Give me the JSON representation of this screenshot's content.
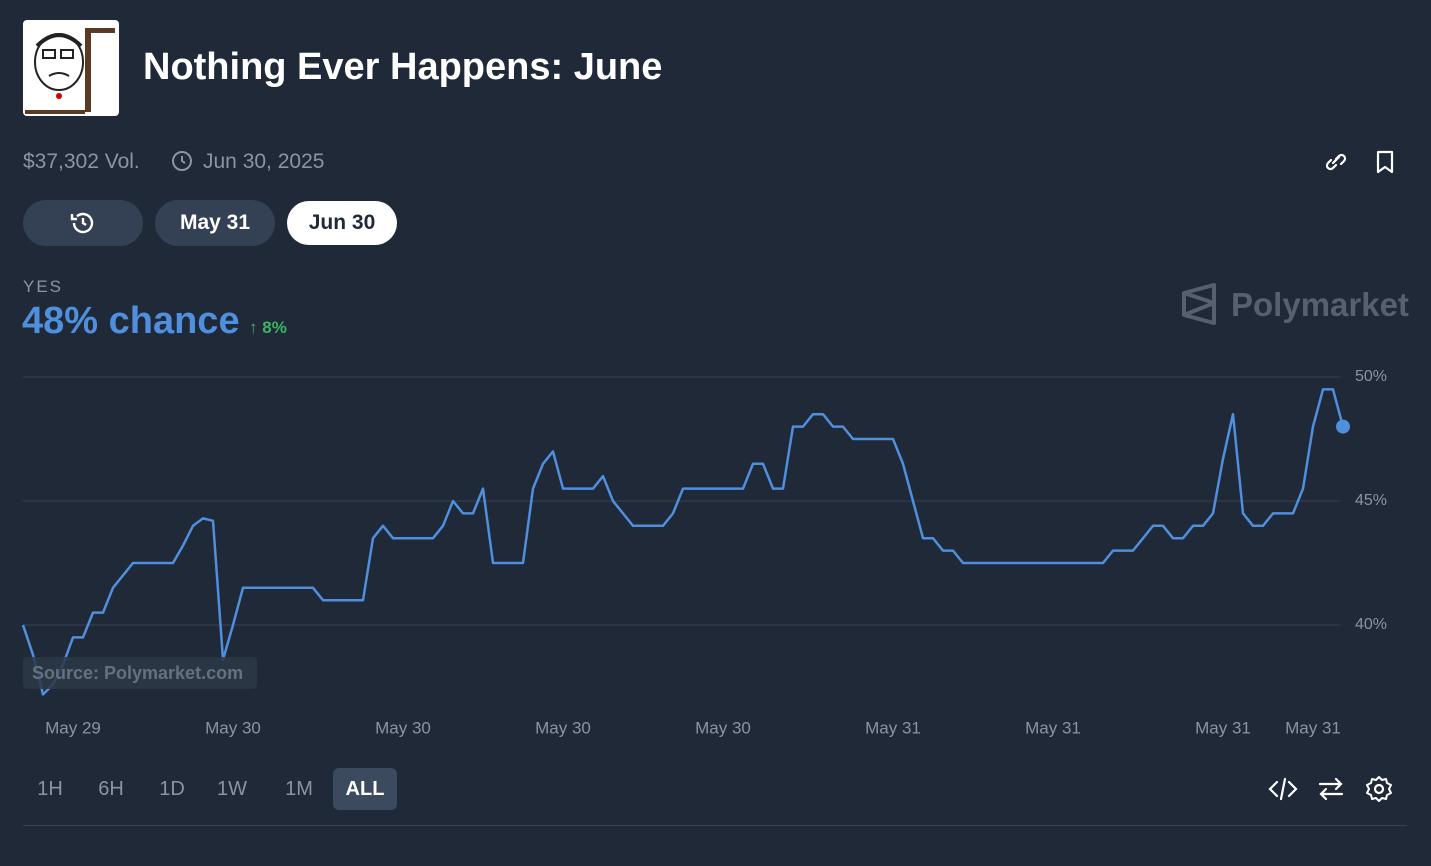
{
  "header": {
    "title": "Nothing Ever Happens: June",
    "volume": "$37,302 Vol.",
    "end_date": "Jun 30, 2025"
  },
  "date_tabs": [
    "May 31",
    "Jun 30"
  ],
  "outcome": {
    "label": "YES",
    "chance": "48% chance",
    "change": "8%"
  },
  "brand": "Polymarket",
  "source": "Source: Polymarket.com",
  "ranges": [
    "1H",
    "6H",
    "1D",
    "1W",
    "1M",
    "ALL"
  ],
  "chart_data": {
    "type": "line",
    "color": "#4f8fdd",
    "grid": true,
    "ylim": [
      37,
      50
    ],
    "yticks": [
      {
        "value": 40,
        "label": "40%"
      },
      {
        "value": 45,
        "label": "45%"
      },
      {
        "value": 50,
        "label": "50%"
      }
    ],
    "categories": [
      null,
      null,
      null,
      null,
      null,
      "May 29",
      null,
      null,
      null,
      null,
      null,
      null,
      null,
      null,
      null,
      null,
      null,
      null,
      null,
      null,
      null,
      "May 30",
      null,
      null,
      null,
      null,
      null,
      null,
      null,
      null,
      null,
      null,
      null,
      null,
      null,
      null,
      null,
      null,
      "May 30",
      null,
      null,
      null,
      null,
      null,
      null,
      null,
      null,
      null,
      null,
      null,
      null,
      null,
      null,
      null,
      "May 30",
      null,
      null,
      null,
      null,
      null,
      null,
      null,
      null,
      null,
      null,
      null,
      null,
      null,
      null,
      null,
      "May 30",
      null,
      null,
      null,
      null,
      null,
      null,
      null,
      null,
      null,
      null,
      null,
      null,
      null,
      null,
      null,
      null,
      "May 31",
      null,
      null,
      null,
      null,
      null,
      null,
      null,
      null,
      null,
      null,
      null,
      null,
      null,
      null,
      null,
      "May 31",
      null,
      null,
      null,
      null,
      null,
      null,
      null,
      null,
      null,
      null,
      null,
      null,
      null,
      null,
      null,
      null,
      "May 31",
      null,
      null,
      null,
      null,
      null,
      null,
      null,
      null,
      "May 31",
      null,
      null,
      null
    ],
    "values": [
      40.0,
      38.8,
      37.2,
      37.6,
      38.4,
      39.5,
      39.5,
      40.5,
      40.5,
      41.5,
      42.0,
      42.5,
      42.5,
      42.5,
      42.5,
      42.5,
      43.2,
      44.0,
      44.3,
      44.2,
      38.6,
      40.0,
      41.5,
      41.5,
      41.5,
      41.5,
      41.5,
      41.5,
      41.5,
      41.5,
      41.0,
      41.0,
      41.0,
      41.0,
      41.0,
      43.5,
      44.0,
      43.5,
      43.5,
      43.5,
      43.5,
      43.5,
      44.0,
      45.0,
      44.5,
      44.5,
      45.5,
      42.5,
      42.5,
      42.5,
      42.5,
      45.5,
      46.5,
      47.0,
      45.5,
      45.5,
      45.5,
      45.5,
      46.0,
      45.0,
      44.5,
      44.0,
      44.0,
      44.0,
      44.0,
      44.5,
      45.5,
      45.5,
      45.5,
      45.5,
      45.5,
      45.5,
      45.5,
      46.5,
      46.5,
      45.5,
      45.5,
      48.0,
      48.0,
      48.5,
      48.5,
      48.0,
      48.0,
      47.5,
      47.5,
      47.5,
      47.5,
      47.5,
      46.5,
      45.0,
      43.5,
      43.5,
      43.0,
      43.0,
      42.5,
      42.5,
      42.5,
      42.5,
      42.5,
      42.5,
      42.5,
      42.5,
      42.5,
      42.5,
      42.5,
      42.5,
      42.5,
      42.5,
      42.5,
      43.0,
      43.0,
      43.0,
      43.5,
      44.0,
      44.0,
      43.5,
      43.5,
      44.0,
      44.0,
      44.5,
      46.7,
      48.5,
      44.5,
      44.0,
      44.0,
      44.5,
      44.5,
      44.5,
      45.5,
      48.0,
      49.5,
      49.5,
      48.0
    ]
  }
}
